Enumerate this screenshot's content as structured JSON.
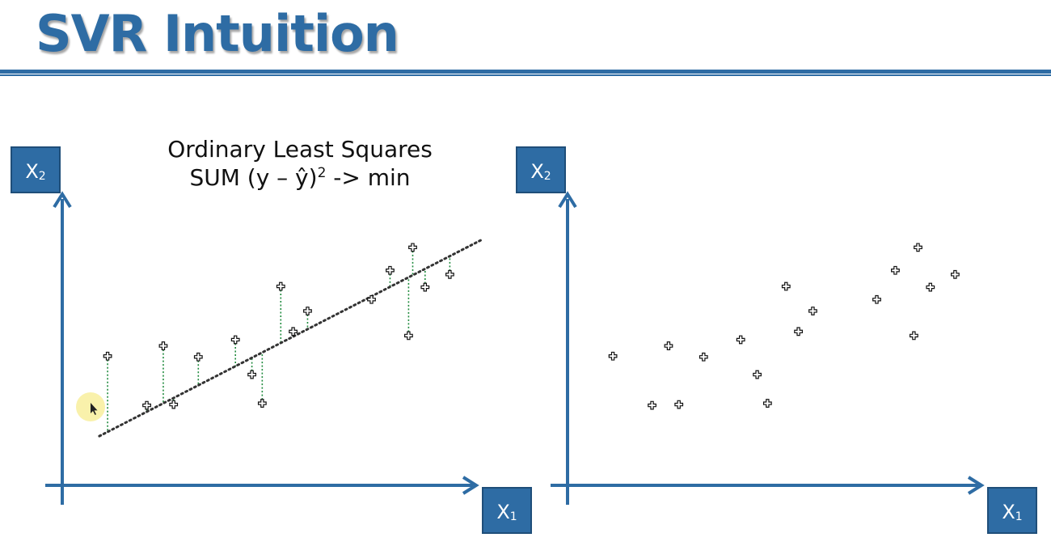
{
  "slide": {
    "title": "SVR Intuition"
  },
  "chart_data": [
    {
      "type": "scatter",
      "title": "Ordinary Least Squares",
      "subtitle_parts": {
        "prefix": "SUM (y – ŷ)",
        "exponent": "2",
        "suffix": " -> min"
      },
      "xlabel": {
        "main": "X",
        "sub": "1"
      },
      "ylabel": {
        "main": "X",
        "sub": "2"
      },
      "xlim": [
        0,
        100
      ],
      "ylim": [
        0,
        70
      ],
      "fitted_line": {
        "x0": 9,
        "y0": 12,
        "x1": 102,
        "y1": 60
      },
      "show_residuals": true,
      "grid": false,
      "points": [
        {
          "x": 11,
          "y": 31.5
        },
        {
          "x": 20.5,
          "y": 19.5
        },
        {
          "x": 24.5,
          "y": 34
        },
        {
          "x": 27,
          "y": 19.7
        },
        {
          "x": 33,
          "y": 31.3
        },
        {
          "x": 42,
          "y": 35.5
        },
        {
          "x": 46,
          "y": 27
        },
        {
          "x": 48.5,
          "y": 20
        },
        {
          "x": 53,
          "y": 48.5
        },
        {
          "x": 56,
          "y": 37.5
        },
        {
          "x": 59.5,
          "y": 42.5
        },
        {
          "x": 75,
          "y": 45.3
        },
        {
          "x": 79.5,
          "y": 52.4
        },
        {
          "x": 84,
          "y": 36.5
        },
        {
          "x": 85,
          "y": 58
        },
        {
          "x": 88,
          "y": 48.3
        },
        {
          "x": 94,
          "y": 51.4
        }
      ]
    },
    {
      "type": "scatter",
      "title": "",
      "xlabel": {
        "main": "X",
        "sub": "1"
      },
      "ylabel": {
        "main": "X",
        "sub": "2"
      },
      "xlim": [
        0,
        100
      ],
      "ylim": [
        0,
        70
      ],
      "show_residuals": false,
      "grid": false,
      "points": [
        {
          "x": 11,
          "y": 31.5
        },
        {
          "x": 20.5,
          "y": 19.5
        },
        {
          "x": 24.5,
          "y": 34
        },
        {
          "x": 27,
          "y": 19.7
        },
        {
          "x": 33,
          "y": 31.3
        },
        {
          "x": 42,
          "y": 35.5
        },
        {
          "x": 46,
          "y": 27
        },
        {
          "x": 48.5,
          "y": 20
        },
        {
          "x": 53,
          "y": 48.5
        },
        {
          "x": 56,
          "y": 37.5
        },
        {
          "x": 59.5,
          "y": 42.5
        },
        {
          "x": 75,
          "y": 45.3
        },
        {
          "x": 79.5,
          "y": 52.4
        },
        {
          "x": 84,
          "y": 36.5
        },
        {
          "x": 85,
          "y": 58
        },
        {
          "x": 88,
          "y": 48.3
        },
        {
          "x": 94,
          "y": 51.4
        }
      ]
    }
  ],
  "colors": {
    "accent": "#2e6ca4",
    "residual": "#1e8a3c",
    "regression_line": "#333333"
  },
  "icons": [
    "mouse-pointer-icon",
    "pointer-highlight"
  ]
}
